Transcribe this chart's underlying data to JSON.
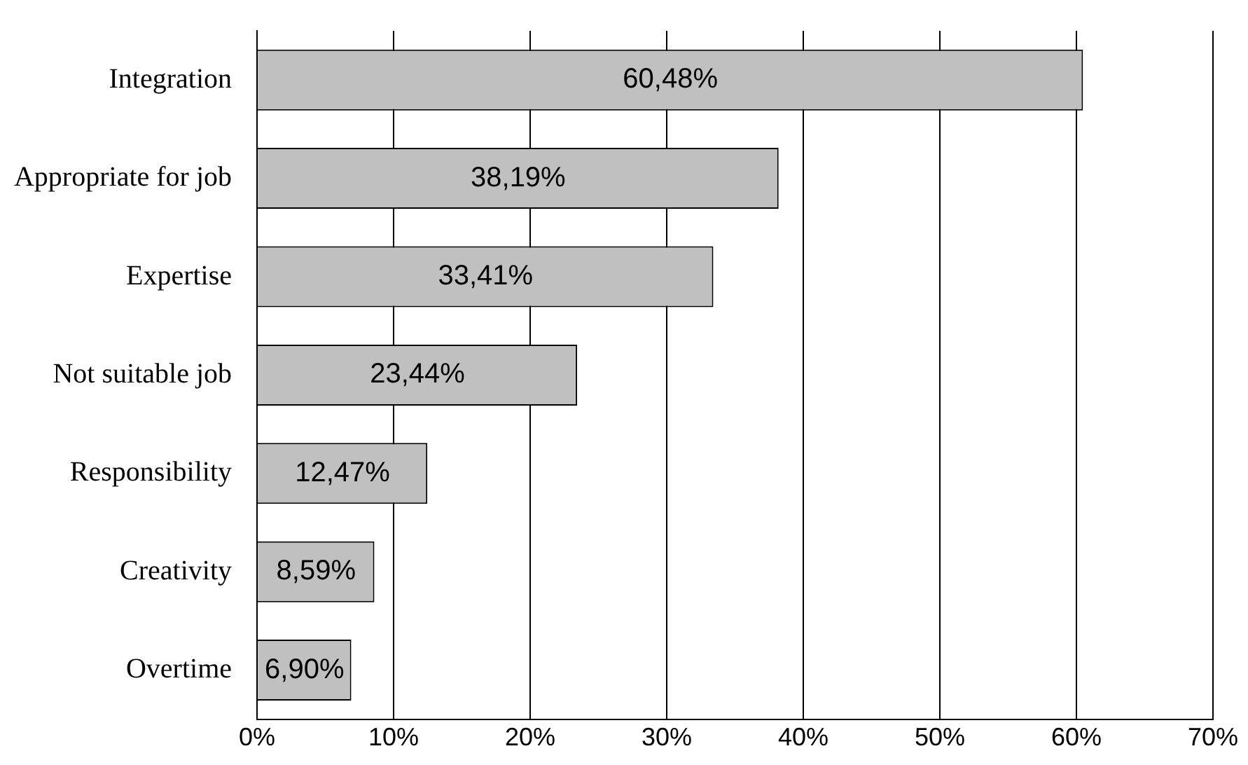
{
  "chart_data": {
    "type": "bar",
    "orientation": "horizontal",
    "categories": [
      "Integration",
      "Appropriate for job",
      "Expertise",
      "Not suitable job",
      "Responsibility",
      "Creativity",
      "Overtime"
    ],
    "values": [
      60.48,
      38.19,
      33.41,
      23.44,
      12.47,
      8.59,
      6.9
    ],
    "value_labels": [
      "60,48%",
      "38,19%",
      "33,41%",
      "23,44%",
      "12,47%",
      "8,59%",
      "6,90%"
    ],
    "color": "#c0c0c0",
    "xlim": [
      0,
      70
    ],
    "xticks": [
      {
        "value": 0,
        "label": "0%"
      },
      {
        "value": 10,
        "label": "10%"
      },
      {
        "value": 20,
        "label": "20%"
      },
      {
        "value": 30,
        "label": "30%"
      },
      {
        "value": 40,
        "label": "40%"
      },
      {
        "value": 50,
        "label": "50%"
      },
      {
        "value": 60,
        "label": "60%"
      },
      {
        "value": 70,
        "label": "70%"
      }
    ],
    "grid": "x",
    "legend": false
  }
}
